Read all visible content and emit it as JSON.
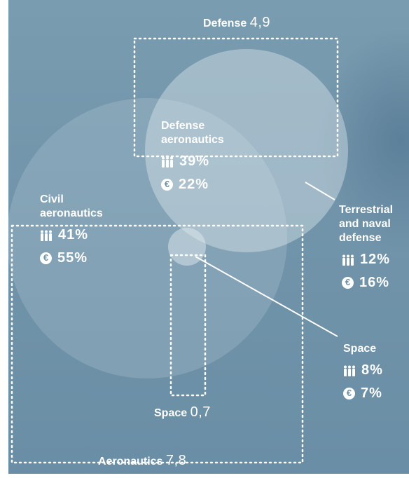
{
  "totals": {
    "defense": {
      "label": "Defense",
      "value": "4,9"
    },
    "space": {
      "label": "Space",
      "value": "0,7"
    },
    "aeronautics": {
      "label": "Aeronautics",
      "value": "7,8"
    }
  },
  "segments": {
    "defense_aeronautics": {
      "label_line1": "Defense",
      "label_line2": "aeronautics",
      "employees": "39%",
      "revenue": "22%"
    },
    "civil_aeronautics": {
      "label_line1": "Civil",
      "label_line2": "aeronautics",
      "employees": "41%",
      "revenue": "55%"
    },
    "terrestrial_naval": {
      "label_line1": "Terrestrial",
      "label_line2": "and naval",
      "label_line3": "defense",
      "employees": "12%",
      "revenue": "16%"
    },
    "space": {
      "label_line1": "Space",
      "employees": "8%",
      "revenue": "7%"
    }
  },
  "icons": {
    "employees": "people-icon",
    "revenue": "euro-icon"
  },
  "colors": {
    "background": "#7295ab",
    "circle_fill": "#d6e3ea",
    "text": "#ffffff"
  }
}
